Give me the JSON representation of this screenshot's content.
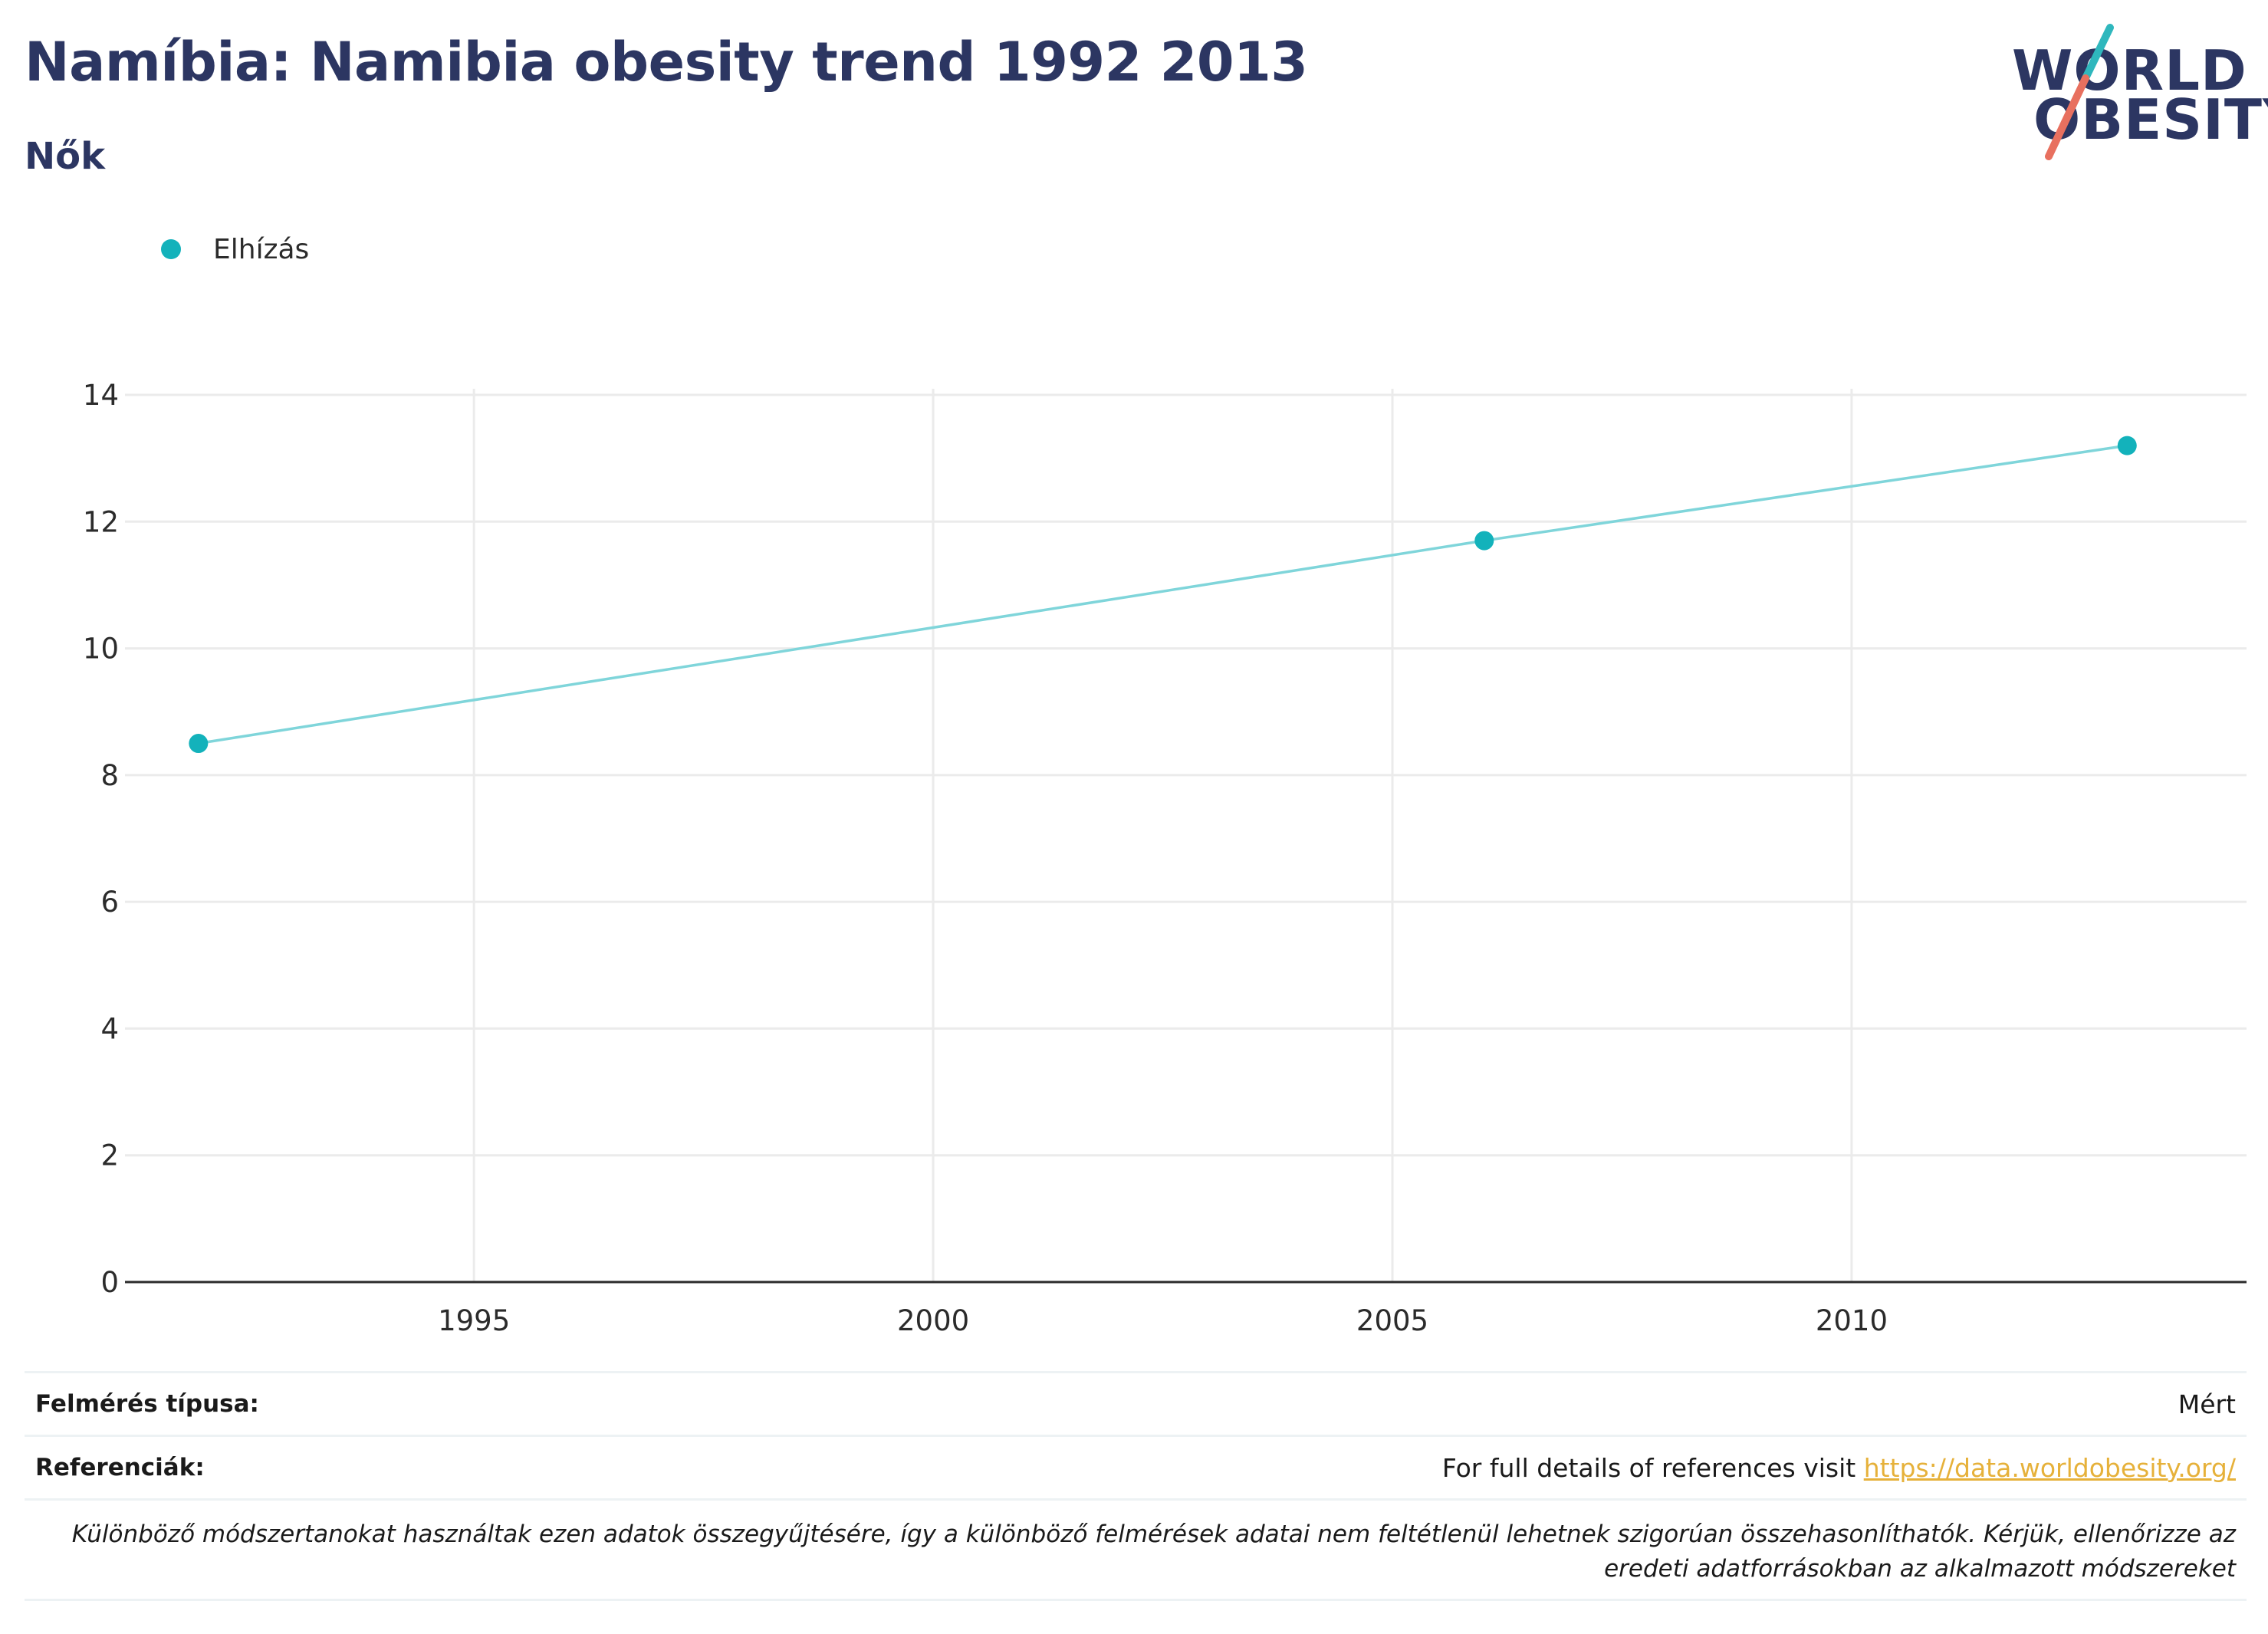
{
  "header": {
    "title": "Namíbia: Namibia obesity trend 1992 2013",
    "subtitle": "Nők"
  },
  "logo": {
    "line1": "WORLD",
    "line2": "OBESITY",
    "accent_teal": "#2fb7bd",
    "accent_coral": "#e8705f"
  },
  "legend": {
    "label": "Elhízás",
    "color": "#13b2bb"
  },
  "chart_data": {
    "type": "line",
    "x": [
      1992,
      2006,
      2013
    ],
    "series": [
      {
        "name": "Elhízás",
        "values": [
          8.5,
          11.7,
          13.2
        ],
        "color": "#13b2bb",
        "line_color": "#7fd5da"
      }
    ],
    "xlim": [
      1991.2,
      2014.3
    ],
    "ylim": [
      0,
      14
    ],
    "xticks": [
      1995,
      2000,
      2005,
      2010
    ],
    "yticks": [
      0,
      2,
      4,
      6,
      8,
      10,
      12,
      14
    ],
    "grid": true,
    "legend_position": "top-left"
  },
  "footer": {
    "survey_label": "Felmérés típusa:",
    "survey_value": "Mért",
    "refs_label": "Referenciák:",
    "refs_text": "For full details of references visit",
    "refs_link": "https://data.worldobesity.org/",
    "note": "Különböző módszertanokat használtak ezen adatok összegyűjtésére, így a különböző felmérések adatai nem feltétlenül lehetnek szigorúan összehasonlíthatók. Kérjük, ellenőrizze az eredeti adatforrásokban az alkalmazott módszereket"
  }
}
